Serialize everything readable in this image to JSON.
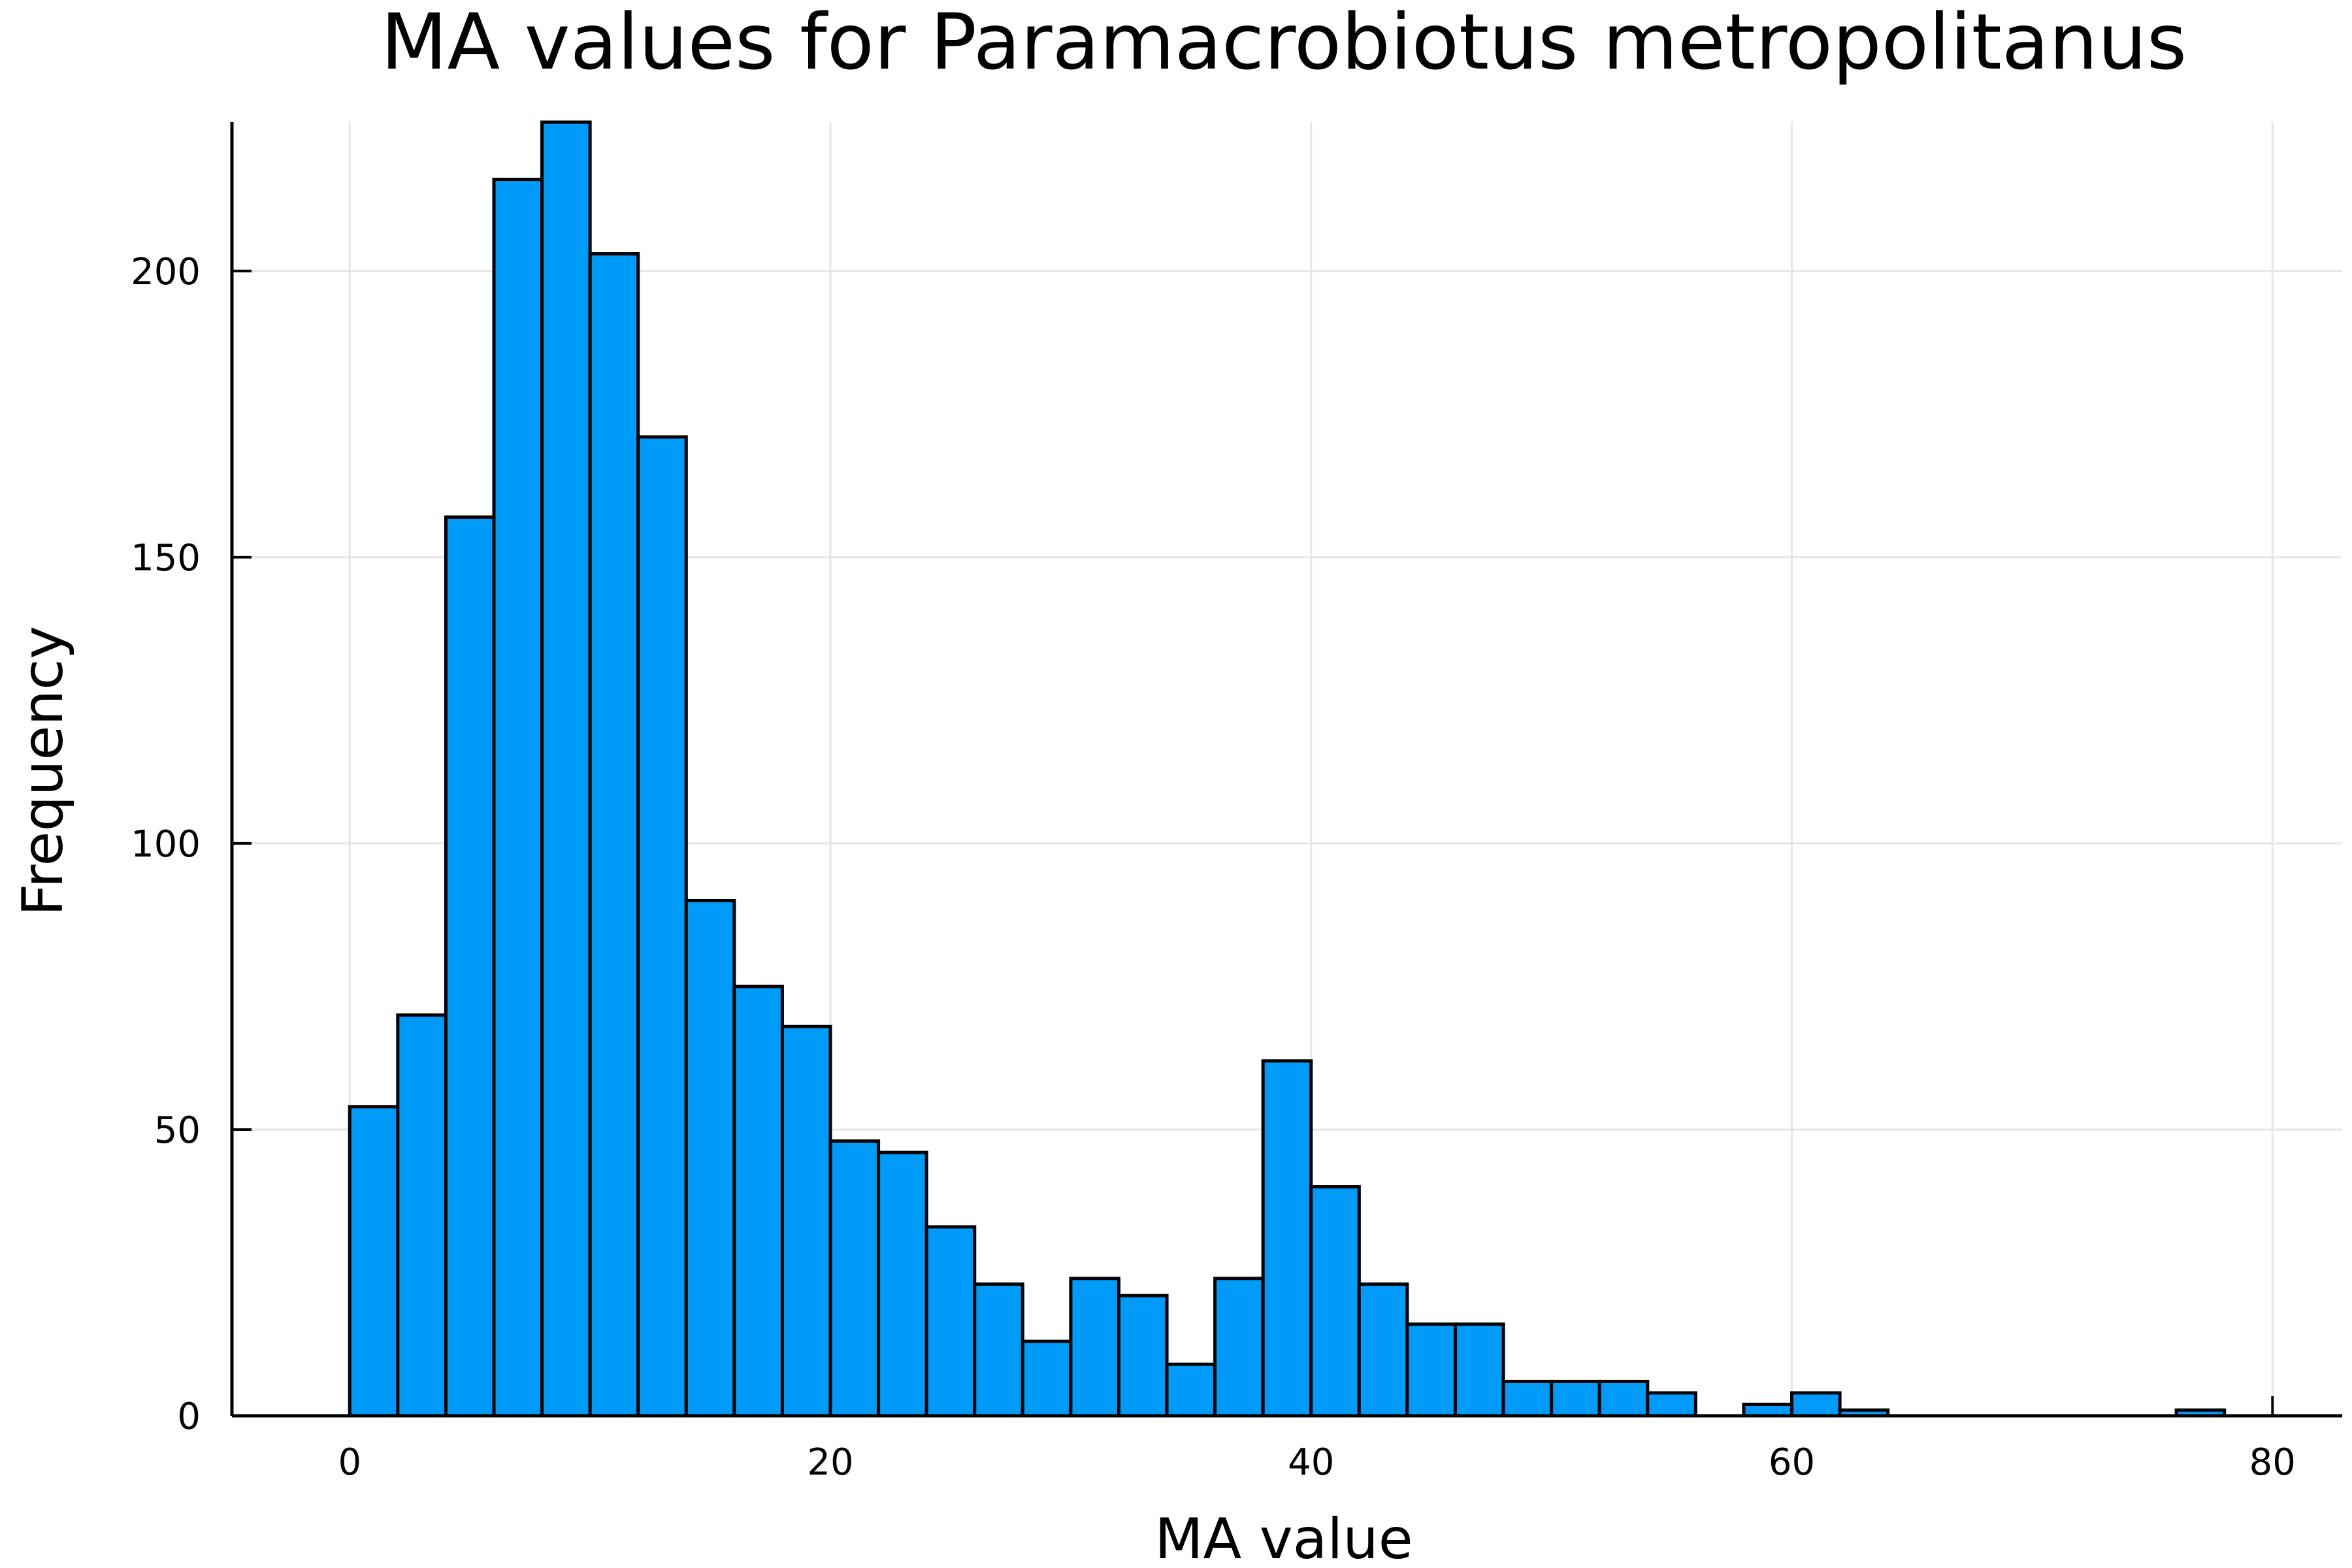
{
  "chart_data": {
    "type": "bar",
    "title": "MA values for Paramacrobiotus metropolitanus",
    "xlabel": "MA value",
    "ylabel": "Frequency",
    "bin_width": 2,
    "bins": [
      {
        "start": 0,
        "end": 2,
        "count": 54
      },
      {
        "start": 2,
        "end": 4,
        "count": 70
      },
      {
        "start": 4,
        "end": 6,
        "count": 157
      },
      {
        "start": 6,
        "end": 8,
        "count": 216
      },
      {
        "start": 8,
        "end": 10,
        "count": 226
      },
      {
        "start": 10,
        "end": 12,
        "count": 203
      },
      {
        "start": 12,
        "end": 14,
        "count": 171
      },
      {
        "start": 14,
        "end": 16,
        "count": 90
      },
      {
        "start": 16,
        "end": 18,
        "count": 75
      },
      {
        "start": 18,
        "end": 20,
        "count": 68
      },
      {
        "start": 20,
        "end": 22,
        "count": 48
      },
      {
        "start": 22,
        "end": 24,
        "count": 46
      },
      {
        "start": 24,
        "end": 26,
        "count": 33
      },
      {
        "start": 26,
        "end": 28,
        "count": 23
      },
      {
        "start": 28,
        "end": 30,
        "count": 13
      },
      {
        "start": 30,
        "end": 32,
        "count": 24
      },
      {
        "start": 32,
        "end": 34,
        "count": 21
      },
      {
        "start": 34,
        "end": 36,
        "count": 9
      },
      {
        "start": 36,
        "end": 38,
        "count": 24
      },
      {
        "start": 38,
        "end": 40,
        "count": 62
      },
      {
        "start": 40,
        "end": 42,
        "count": 40
      },
      {
        "start": 42,
        "end": 44,
        "count": 23
      },
      {
        "start": 44,
        "end": 46,
        "count": 16
      },
      {
        "start": 46,
        "end": 48,
        "count": 16
      },
      {
        "start": 48,
        "end": 50,
        "count": 6
      },
      {
        "start": 50,
        "end": 52,
        "count": 6
      },
      {
        "start": 52,
        "end": 54,
        "count": 6
      },
      {
        "start": 54,
        "end": 56,
        "count": 4
      },
      {
        "start": 56,
        "end": 58,
        "count": 0
      },
      {
        "start": 58,
        "end": 60,
        "count": 2
      },
      {
        "start": 60,
        "end": 62,
        "count": 4
      },
      {
        "start": 62,
        "end": 64,
        "count": 1
      },
      {
        "start": 64,
        "end": 66,
        "count": 0
      },
      {
        "start": 66,
        "end": 68,
        "count": 0
      },
      {
        "start": 68,
        "end": 70,
        "count": 0
      },
      {
        "start": 70,
        "end": 72,
        "count": 0
      },
      {
        "start": 72,
        "end": 74,
        "count": 0
      },
      {
        "start": 74,
        "end": 76,
        "count": 0
      },
      {
        "start": 76,
        "end": 78,
        "count": 1
      }
    ],
    "xlim": [
      -4.9,
      82.9
    ],
    "ylim": [
      0,
      226
    ],
    "xticks": [
      0,
      20,
      40,
      60,
      80
    ],
    "yticks": [
      0,
      50,
      100,
      150,
      200
    ],
    "grid": true,
    "legend": "none",
    "colors": {
      "bar_fill": "#009af9",
      "bar_edge": "#000000",
      "grid": "#e6e6e6",
      "axis": "#000000"
    }
  }
}
